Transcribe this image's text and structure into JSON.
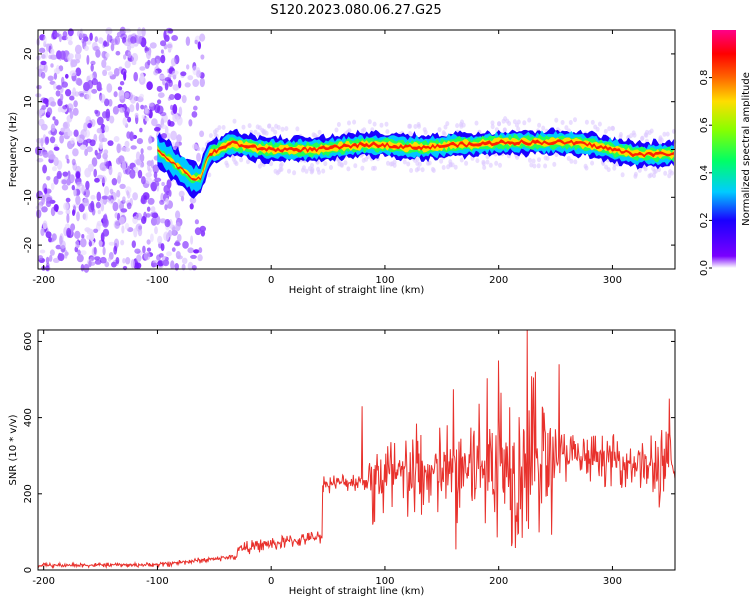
{
  "figure": {
    "title": "S120.2023.080.06.27.G25"
  },
  "chart_data": [
    {
      "type": "heatmap",
      "xlabel": "Height of straight line (km)",
      "ylabel": "Frequency (Hz)",
      "xlim": [
        -205,
        355
      ],
      "ylim": [
        -25,
        25
      ],
      "xticks": [
        -200,
        -100,
        0,
        100,
        200,
        300
      ],
      "yticks": [
        -20,
        -10,
        0,
        10,
        20
      ],
      "colorbar": {
        "label": "Normalized spectral amplitude",
        "range": [
          0,
          1
        ],
        "ticks": [
          "0.0",
          "0.2",
          "0.4",
          "0.6",
          "0.8"
        ],
        "tick_values": [
          0.0,
          0.2,
          0.4,
          0.6,
          0.8
        ],
        "colormap": "rainbow (purple-blue-cyan-green-yellow-orange-red-magenta)"
      },
      "ridge": {
        "x": [
          -100,
          -90,
          -80,
          -70,
          -62,
          -55,
          -45,
          -35,
          -20,
          0,
          20,
          40,
          60,
          80,
          100,
          120,
          140,
          160,
          180,
          200,
          220,
          240,
          260,
          280,
          300,
          320,
          340,
          355
        ],
        "y": [
          0,
          -2,
          -4,
          -6,
          -6,
          -1,
          0,
          1.5,
          0.5,
          0,
          0,
          0,
          0.5,
          1,
          1,
          0.5,
          0.5,
          1,
          1,
          1.5,
          1.5,
          1.5,
          1.5,
          1,
          0,
          -1,
          -1,
          -1
        ]
      },
      "noise_region": {
        "x": [
          -205,
          -60
        ],
        "y": [
          -25,
          25
        ]
      }
    },
    {
      "type": "line",
      "xlabel": "Height of straight line (km)",
      "ylabel": "SNR (10 * v/v)",
      "xlim": [
        -205,
        355
      ],
      "ylim": [
        0,
        630
      ],
      "xticks": [
        -200,
        -100,
        0,
        100,
        200,
        300
      ],
      "yticks": [
        0,
        200,
        400,
        600
      ],
      "color": "#e8312c",
      "segments": [
        {
          "x": [
            -205,
            -100
          ],
          "base": [
            12,
            14
          ],
          "noise": 6
        },
        {
          "x": [
            -100,
            -30
          ],
          "base": [
            14,
            35
          ],
          "noise": 8
        },
        {
          "x": [
            -30,
            45
          ],
          "base": [
            55,
            88
          ],
          "noise": 18
        },
        {
          "x": [
            45,
            85
          ],
          "base": [
            225,
            235
          ],
          "noise": 25
        },
        {
          "x": [
            85,
            160
          ],
          "base": [
            235,
            260
          ],
          "noise": 140
        },
        {
          "x": [
            160,
            250
          ],
          "base": [
            265,
            300
          ],
          "noise": 230
        },
        {
          "x": [
            250,
            330
          ],
          "base": [
            300,
            280
          ],
          "noise": 70
        },
        {
          "x": [
            330,
            355
          ],
          "base": [
            270,
            260
          ],
          "noise": 110
        }
      ],
      "peaks": [
        {
          "x": 80,
          "y": 430
        },
        {
          "x": 200,
          "y": 550
        },
        {
          "x": 225,
          "y": 630
        },
        {
          "x": 253,
          "y": 540
        },
        {
          "x": 350,
          "y": 450
        }
      ]
    }
  ]
}
